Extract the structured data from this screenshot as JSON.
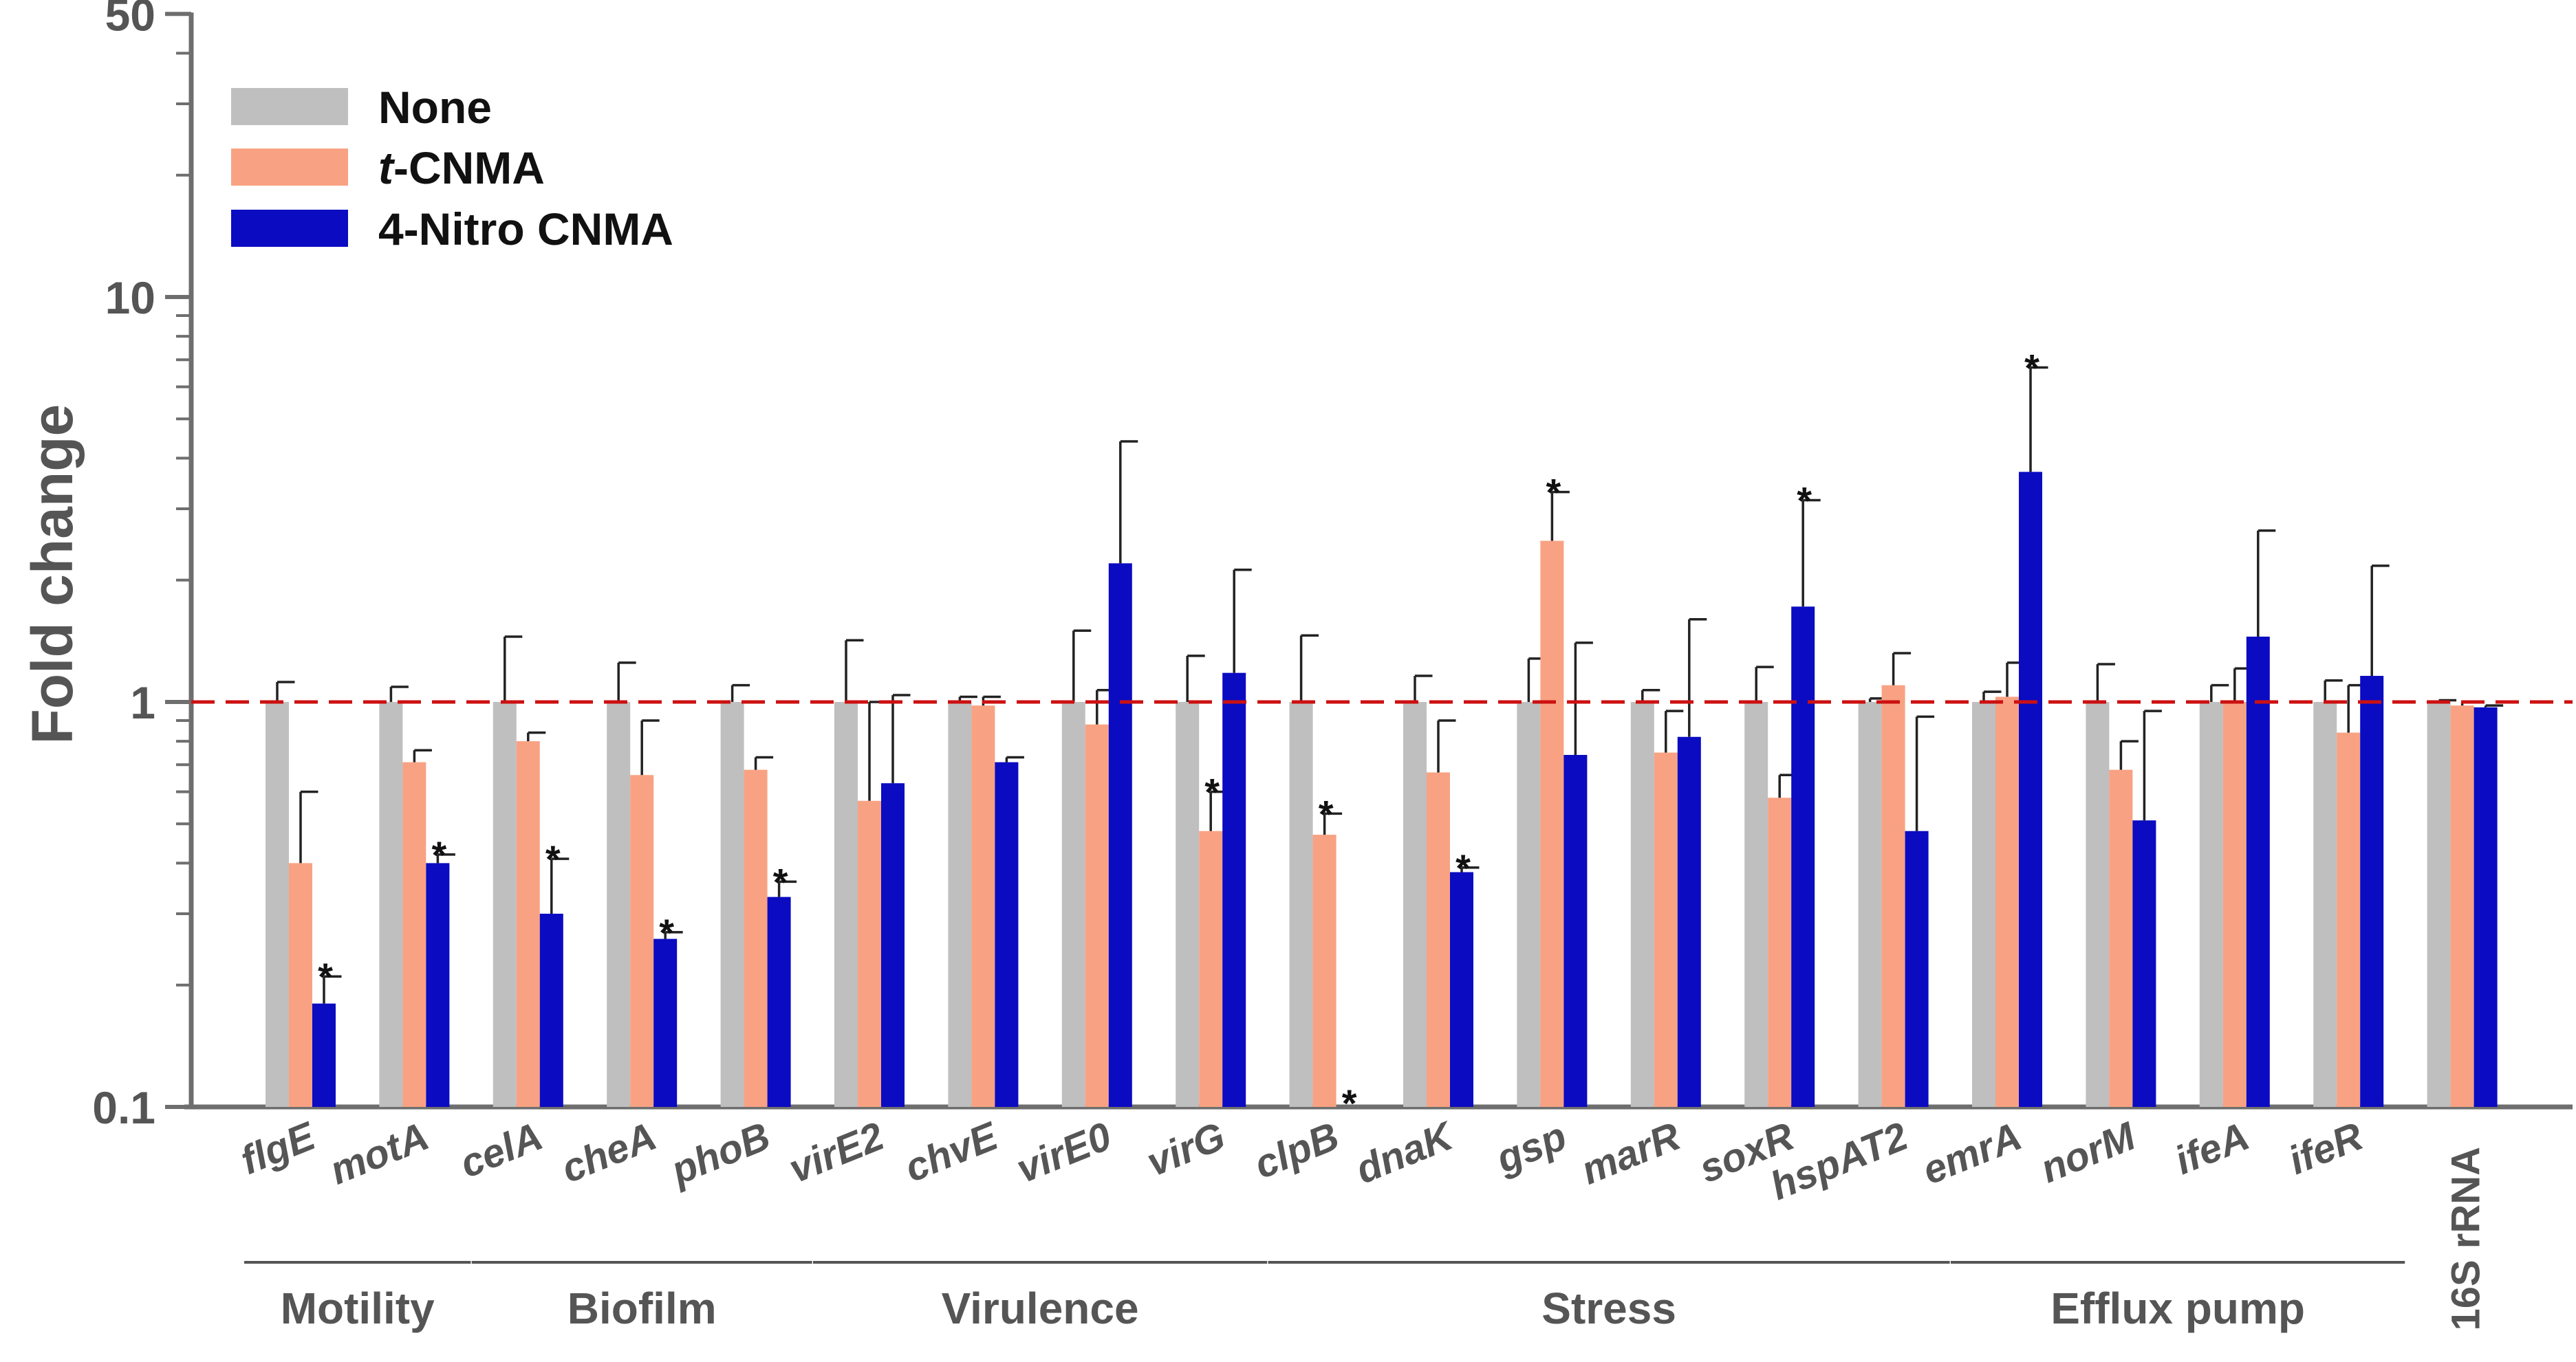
{
  "chart_data": {
    "type": "bar",
    "scale": "log",
    "ylabel": "Fold change",
    "xlabel": "",
    "ylim": [
      0.1,
      50
    ],
    "y_ticks": [
      "0.1",
      "1",
      "10",
      "50"
    ],
    "reference_line": {
      "y": 1,
      "color": "#cc1111",
      "style": "dashed"
    },
    "colors": {
      "None": "#bfbfbf",
      "t-CNMA": "#f8a283",
      "4-Nitro CNMA": "#0b0bc2"
    },
    "legend": [
      {
        "prefix": "",
        "italic": "",
        "suffix": "None",
        "key": "None"
      },
      {
        "prefix": "",
        "italic": "t",
        "suffix": "-CNMA",
        "key": "t-CNMA"
      },
      {
        "prefix": "",
        "italic": "",
        "suffix": "4-Nitro CNMA",
        "key": "4-Nitro CNMA"
      }
    ],
    "categories": [
      "flgE",
      "motA",
      "celA",
      "cheA",
      "phoB",
      "virE2",
      "chvE",
      "virE0",
      "virG",
      "clpB",
      "dnaK",
      "gsp",
      "marR",
      "soxR",
      "hspAT2",
      "emrA",
      "norM",
      "ifeA",
      "ifeR",
      "16S rRNA"
    ],
    "series": [
      {
        "name": "None",
        "values": [
          1,
          1,
          1,
          1,
          1,
          1,
          1,
          1,
          1,
          1,
          1,
          1,
          1,
          1,
          1,
          1,
          1,
          1,
          1,
          1
        ],
        "err_upper": [
          1.12,
          1.09,
          1.45,
          1.25,
          1.1,
          1.42,
          1.03,
          1.5,
          1.3,
          1.46,
          1.16,
          1.28,
          1.07,
          1.22,
          1.02,
          1.06,
          1.24,
          1.1,
          1.13,
          1.01
        ],
        "sig": [
          false,
          false,
          false,
          false,
          false,
          false,
          false,
          false,
          false,
          false,
          false,
          false,
          false,
          false,
          false,
          false,
          false,
          false,
          false,
          false
        ]
      },
      {
        "name": "t-CNMA",
        "values": [
          0.4,
          0.71,
          0.8,
          0.66,
          0.68,
          0.57,
          0.98,
          0.88,
          0.48,
          0.47,
          0.67,
          2.5,
          0.75,
          0.58,
          1.1,
          1.03,
          0.68,
          1.0,
          0.84,
          0.98
        ],
        "err_upper": [
          0.6,
          0.76,
          0.84,
          0.9,
          0.73,
          1.0,
          1.03,
          1.07,
          0.6,
          0.53,
          0.9,
          3.3,
          0.95,
          0.66,
          1.32,
          1.25,
          0.8,
          1.21,
          1.1,
          1.0
        ],
        "sig": [
          false,
          false,
          false,
          false,
          false,
          false,
          false,
          false,
          true,
          true,
          false,
          true,
          false,
          false,
          false,
          false,
          false,
          false,
          false,
          false
        ]
      },
      {
        "name": "4-Nitro CNMA",
        "values": [
          0.18,
          0.4,
          0.3,
          0.26,
          0.33,
          0.63,
          0.71,
          2.2,
          1.18,
          0.1,
          0.38,
          0.74,
          0.82,
          1.72,
          0.48,
          3.7,
          0.51,
          1.45,
          1.16,
          0.97
        ],
        "err_upper": [
          0.21,
          0.42,
          0.41,
          0.27,
          0.36,
          1.04,
          0.73,
          4.4,
          2.12,
          0.1,
          0.39,
          1.4,
          1.6,
          3.15,
          0.92,
          6.7,
          0.95,
          2.65,
          2.17,
          0.98
        ],
        "sig": [
          true,
          true,
          true,
          true,
          true,
          false,
          false,
          false,
          false,
          true,
          true,
          false,
          false,
          true,
          false,
          true,
          false,
          false,
          false,
          false
        ]
      }
    ],
    "groups": [
      {
        "label": "Motility",
        "from": 0,
        "to": 1
      },
      {
        "label": "Biofilm",
        "from": 2,
        "to": 4
      },
      {
        "label": "Virulence",
        "from": 5,
        "to": 8
      },
      {
        "label": "Stress",
        "from": 9,
        "to": 14
      },
      {
        "label": "Efflux pump",
        "from": 15,
        "to": 18
      }
    ],
    "significance_marker": "*"
  }
}
